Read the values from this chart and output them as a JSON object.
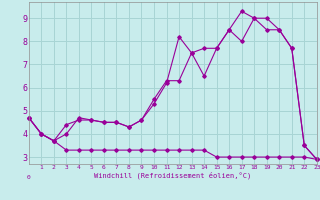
{
  "bg_color": "#c8ecec",
  "grid_color": "#a8d4d4",
  "line_color": "#990099",
  "xlabel": "Windchill (Refroidissement éolien,°C)",
  "x_ticks": [
    1,
    2,
    3,
    4,
    5,
    6,
    7,
    8,
    9,
    10,
    11,
    12,
    13,
    14,
    15,
    16,
    17,
    18,
    19,
    20,
    21,
    22,
    23
  ],
  "y_ticks": [
    3,
    4,
    5,
    6,
    7,
    8,
    9
  ],
  "xlim": [
    0,
    23
  ],
  "ylim": [
    2.7,
    9.7
  ],
  "line1_x": [
    0,
    1,
    2,
    3,
    4,
    5,
    6,
    7,
    8,
    9,
    10,
    11,
    12,
    13,
    14,
    15,
    16,
    17,
    18,
    19,
    20,
    21,
    22,
    23
  ],
  "line1_y": [
    4.7,
    4.0,
    3.7,
    3.3,
    3.3,
    3.3,
    3.3,
    3.3,
    3.3,
    3.3,
    3.3,
    3.3,
    3.3,
    3.3,
    3.3,
    3.0,
    3.0,
    3.0,
    3.0,
    3.0,
    3.0,
    3.0,
    3.0,
    2.9
  ],
  "line2_x": [
    0,
    1,
    2,
    3,
    4,
    5,
    6,
    7,
    8,
    9,
    10,
    11,
    12,
    13,
    14,
    15,
    16,
    17,
    18,
    19,
    20,
    21,
    22,
    23
  ],
  "line2_y": [
    4.7,
    4.0,
    3.7,
    4.4,
    4.6,
    4.6,
    4.5,
    4.5,
    4.3,
    4.6,
    5.5,
    6.3,
    6.3,
    7.5,
    7.7,
    7.7,
    8.5,
    8.0,
    9.0,
    9.0,
    8.5,
    7.7,
    3.5,
    2.9
  ],
  "line3_x": [
    0,
    1,
    2,
    3,
    4,
    5,
    6,
    7,
    8,
    9,
    10,
    11,
    12,
    13,
    14,
    15,
    16,
    17,
    18,
    19,
    20,
    21,
    22,
    23
  ],
  "line3_y": [
    4.7,
    4.0,
    3.7,
    4.0,
    4.7,
    4.6,
    4.5,
    4.5,
    4.3,
    4.6,
    5.3,
    6.2,
    8.2,
    7.5,
    6.5,
    7.7,
    8.5,
    9.3,
    9.0,
    8.5,
    8.5,
    7.7,
    3.5,
    2.9
  ]
}
